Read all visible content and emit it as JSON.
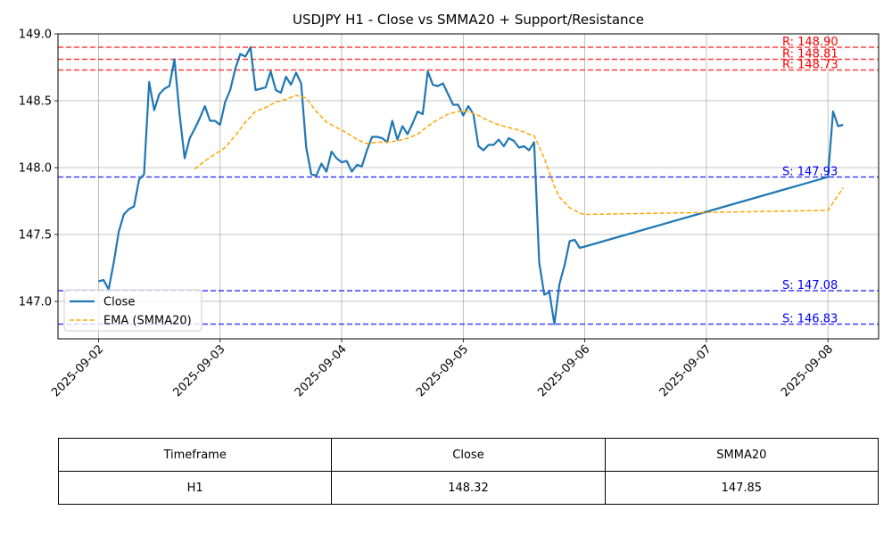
{
  "chart_data": {
    "type": "line",
    "title": "USDJPY H1 - Close vs SMMA20 + Support/Resistance",
    "xlabel": "",
    "ylabel": "",
    "x_ticks": [
      "2025-09-02",
      "2025-09-03",
      "2025-09-04",
      "2025-09-05",
      "2025-09-06",
      "2025-09-07",
      "2025-09-08"
    ],
    "x_range": [
      "2025-09-01 16:00",
      "2025-09-08 10:00"
    ],
    "y_ticks": [
      "147.0",
      "147.5",
      "148.0",
      "148.5",
      "149.0"
    ],
    "ylim": [
      146.72,
      149.0
    ],
    "grid": true,
    "legend_position": "lower-left",
    "series": [
      {
        "name": "Close",
        "color": "#1f77b4",
        "style": "solid",
        "points": [
          [
            "2025-09-02 00:00",
            147.15
          ],
          [
            "2025-09-02 01:00",
            147.16
          ],
          [
            "2025-09-02 02:00",
            147.09
          ],
          [
            "2025-09-02 03:00",
            147.29
          ],
          [
            "2025-09-02 04:00",
            147.52
          ],
          [
            "2025-09-02 05:00",
            147.65
          ],
          [
            "2025-09-02 06:00",
            147.69
          ],
          [
            "2025-09-02 07:00",
            147.71
          ],
          [
            "2025-09-02 08:00",
            147.91
          ],
          [
            "2025-09-02 09:00",
            147.95
          ],
          [
            "2025-09-02 10:00",
            148.64
          ],
          [
            "2025-09-02 11:00",
            148.43
          ],
          [
            "2025-09-02 12:00",
            148.55
          ],
          [
            "2025-09-02 13:00",
            148.59
          ],
          [
            "2025-09-02 14:00",
            148.61
          ],
          [
            "2025-09-02 15:00",
            148.81
          ],
          [
            "2025-09-02 16:00",
            148.4
          ],
          [
            "2025-09-02 17:00",
            148.07
          ],
          [
            "2025-09-02 18:00",
            148.22
          ],
          [
            "2025-09-02 19:00",
            148.29
          ],
          [
            "2025-09-02 20:00",
            148.37
          ],
          [
            "2025-09-02 21:00",
            148.46
          ],
          [
            "2025-09-02 22:00",
            148.35
          ],
          [
            "2025-09-02 23:00",
            148.35
          ],
          [
            "2025-09-03 00:00",
            148.32
          ],
          [
            "2025-09-03 01:00",
            148.49
          ],
          [
            "2025-09-03 02:00",
            148.58
          ],
          [
            "2025-09-03 03:00",
            148.74
          ],
          [
            "2025-09-03 04:00",
            148.85
          ],
          [
            "2025-09-03 05:00",
            148.83
          ],
          [
            "2025-09-03 06:00",
            148.9
          ],
          [
            "2025-09-03 07:00",
            148.58
          ],
          [
            "2025-09-03 08:00",
            148.59
          ],
          [
            "2025-09-03 09:00",
            148.6
          ],
          [
            "2025-09-03 10:00",
            148.72
          ],
          [
            "2025-09-03 11:00",
            148.58
          ],
          [
            "2025-09-03 12:00",
            148.56
          ],
          [
            "2025-09-03 13:00",
            148.68
          ],
          [
            "2025-09-03 14:00",
            148.62
          ],
          [
            "2025-09-03 15:00",
            148.71
          ],
          [
            "2025-09-03 16:00",
            148.63
          ],
          [
            "2025-09-03 17:00",
            148.15
          ],
          [
            "2025-09-03 18:00",
            147.95
          ],
          [
            "2025-09-03 19:00",
            147.94
          ],
          [
            "2025-09-03 20:00",
            148.03
          ],
          [
            "2025-09-03 21:00",
            147.97
          ],
          [
            "2025-09-03 22:00",
            148.12
          ],
          [
            "2025-09-03 23:00",
            148.07
          ],
          [
            "2025-09-04 00:00",
            148.04
          ],
          [
            "2025-09-04 01:00",
            148.05
          ],
          [
            "2025-09-04 02:00",
            147.97
          ],
          [
            "2025-09-04 03:00",
            148.02
          ],
          [
            "2025-09-04 04:00",
            148.01
          ],
          [
            "2025-09-04 05:00",
            148.13
          ],
          [
            "2025-09-04 06:00",
            148.23
          ],
          [
            "2025-09-04 07:00",
            148.23
          ],
          [
            "2025-09-04 08:00",
            148.22
          ],
          [
            "2025-09-04 09:00",
            148.19
          ],
          [
            "2025-09-04 10:00",
            148.35
          ],
          [
            "2025-09-04 11:00",
            148.21
          ],
          [
            "2025-09-04 12:00",
            148.31
          ],
          [
            "2025-09-04 13:00",
            148.25
          ],
          [
            "2025-09-04 14:00",
            148.33
          ],
          [
            "2025-09-04 15:00",
            148.42
          ],
          [
            "2025-09-04 16:00",
            148.4
          ],
          [
            "2025-09-04 17:00",
            148.72
          ],
          [
            "2025-09-04 18:00",
            148.62
          ],
          [
            "2025-09-04 19:00",
            148.61
          ],
          [
            "2025-09-04 20:00",
            148.63
          ],
          [
            "2025-09-04 21:00",
            148.55
          ],
          [
            "2025-09-04 22:00",
            148.47
          ],
          [
            "2025-09-04 23:00",
            148.47
          ],
          [
            "2025-09-05 00:00",
            148.39
          ],
          [
            "2025-09-05 01:00",
            148.46
          ],
          [
            "2025-09-05 02:00",
            148.4
          ],
          [
            "2025-09-05 03:00",
            148.16
          ],
          [
            "2025-09-05 04:00",
            148.13
          ],
          [
            "2025-09-05 05:00",
            148.17
          ],
          [
            "2025-09-05 06:00",
            148.17
          ],
          [
            "2025-09-05 07:00",
            148.21
          ],
          [
            "2025-09-05 08:00",
            148.16
          ],
          [
            "2025-09-05 09:00",
            148.22
          ],
          [
            "2025-09-05 10:00",
            148.2
          ],
          [
            "2025-09-05 11:00",
            148.15
          ],
          [
            "2025-09-05 12:00",
            148.16
          ],
          [
            "2025-09-05 13:00",
            148.13
          ],
          [
            "2025-09-05 14:00",
            148.19
          ],
          [
            "2025-09-05 15:00",
            147.29
          ],
          [
            "2025-09-05 16:00",
            147.05
          ],
          [
            "2025-09-05 17:00",
            147.07
          ],
          [
            "2025-09-05 18:00",
            146.83
          ],
          [
            "2025-09-05 19:00",
            147.13
          ],
          [
            "2025-09-05 20:00",
            147.27
          ],
          [
            "2025-09-05 21:00",
            147.45
          ],
          [
            "2025-09-05 22:00",
            147.46
          ],
          [
            "2025-09-05 23:00",
            147.4
          ],
          [
            "2025-09-06 00:00",
            147.41
          ],
          [
            "2025-09-08 00:00",
            147.93
          ],
          [
            "2025-09-08 01:00",
            148.42
          ],
          [
            "2025-09-08 02:00",
            148.31
          ],
          [
            "2025-09-08 03:00",
            148.32
          ]
        ]
      },
      {
        "name": "EMA (SMMA20)",
        "color": "#ffa500",
        "style": "dashed",
        "points": [
          [
            "2025-09-02 19:00",
            147.99
          ],
          [
            "2025-09-02 21:00",
            148.05
          ],
          [
            "2025-09-02 23:00",
            148.1
          ],
          [
            "2025-09-03 01:00",
            148.15
          ],
          [
            "2025-09-03 03:00",
            148.24
          ],
          [
            "2025-09-03 05:00",
            148.34
          ],
          [
            "2025-09-03 07:00",
            148.42
          ],
          [
            "2025-09-03 09:00",
            148.45
          ],
          [
            "2025-09-03 11:00",
            148.49
          ],
          [
            "2025-09-03 13:00",
            148.51
          ],
          [
            "2025-09-03 15:00",
            148.54
          ],
          [
            "2025-09-03 17:00",
            148.52
          ],
          [
            "2025-09-03 19:00",
            148.42
          ],
          [
            "2025-09-03 21:00",
            148.34
          ],
          [
            "2025-09-03 23:00",
            148.3
          ],
          [
            "2025-09-04 01:00",
            148.26
          ],
          [
            "2025-09-04 03:00",
            148.21
          ],
          [
            "2025-09-04 05:00",
            148.18
          ],
          [
            "2025-09-04 07:00",
            148.19
          ],
          [
            "2025-09-04 09:00",
            148.19
          ],
          [
            "2025-09-04 11:00",
            148.2
          ],
          [
            "2025-09-04 13:00",
            148.22
          ],
          [
            "2025-09-04 15:00",
            148.25
          ],
          [
            "2025-09-04 17:00",
            148.31
          ],
          [
            "2025-09-04 19:00",
            148.36
          ],
          [
            "2025-09-04 21:00",
            148.4
          ],
          [
            "2025-09-04 23:00",
            148.42
          ],
          [
            "2025-09-05 01:00",
            148.42
          ],
          [
            "2025-09-05 03:00",
            148.39
          ],
          [
            "2025-09-05 05:00",
            148.35
          ],
          [
            "2025-09-05 07:00",
            148.32
          ],
          [
            "2025-09-05 09:00",
            148.3
          ],
          [
            "2025-09-05 11:00",
            148.28
          ],
          [
            "2025-09-05 13:00",
            148.25
          ],
          [
            "2025-09-05 14:00",
            148.24
          ],
          [
            "2025-09-05 16:00",
            148.07
          ],
          [
            "2025-09-05 18:00",
            147.86
          ],
          [
            "2025-09-05 19:00",
            147.78
          ],
          [
            "2025-09-05 21:00",
            147.7
          ],
          [
            "2025-09-05 23:00",
            147.66
          ],
          [
            "2025-09-06 00:00",
            147.65
          ],
          [
            "2025-09-08 00:00",
            147.68
          ],
          [
            "2025-09-08 03:00",
            147.85
          ]
        ]
      }
    ],
    "levels": [
      {
        "kind": "resistance",
        "value": 148.9,
        "label": "R: 148.90",
        "color": "#ff0000"
      },
      {
        "kind": "resistance",
        "value": 148.81,
        "label": "R: 148.81",
        "color": "#ff0000"
      },
      {
        "kind": "resistance",
        "value": 148.73,
        "label": "R: 148.73",
        "color": "#ff0000"
      },
      {
        "kind": "support",
        "value": 147.93,
        "label": "S: 147.93",
        "color": "#0000ff"
      },
      {
        "kind": "support",
        "value": 147.08,
        "label": "S: 147.08",
        "color": "#0000ff"
      },
      {
        "kind": "support",
        "value": 146.83,
        "label": "S: 146.83",
        "color": "#0000ff"
      }
    ]
  },
  "table": {
    "headers": [
      "Timeframe",
      "Close",
      "SMMA20"
    ],
    "rows": [
      [
        "H1",
        "148.32",
        "147.85"
      ]
    ]
  }
}
